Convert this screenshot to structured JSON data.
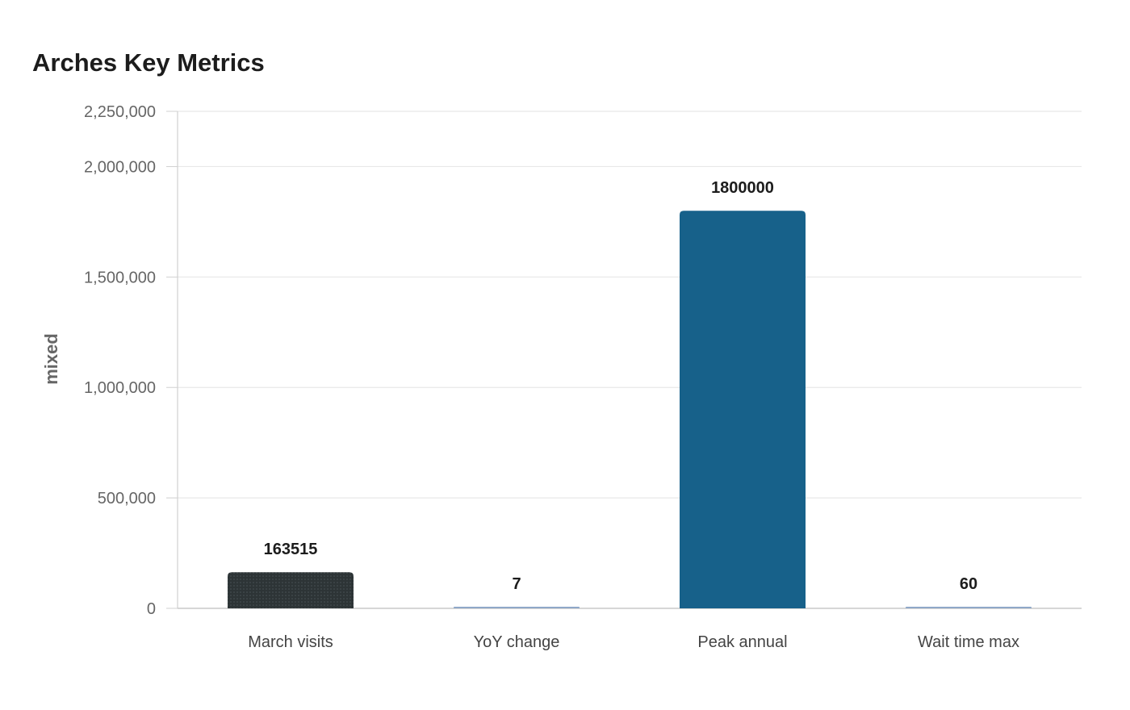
{
  "chart_data": {
    "type": "bar",
    "title": "Arches Key Metrics",
    "xlabel": "",
    "ylabel": "mixed",
    "categories": [
      "March visits",
      "YoY change",
      "Peak annual",
      "Wait time max"
    ],
    "values": [
      163515,
      7,
      1800000,
      60
    ],
    "data_labels": [
      "163515",
      "7",
      "1800000",
      "60"
    ],
    "ylim": [
      0,
      2250000
    ],
    "yticks": [
      0,
      500000,
      1000000,
      1500000,
      2000000,
      2250000
    ],
    "ytick_labels": [
      "0",
      "500,000",
      "1,000,000",
      "1,500,000",
      "2,000,000",
      "2,250,000"
    ],
    "bar_colors": [
      "#2d3436",
      "#8fa8c8",
      "#17618a",
      "#8fa8c8"
    ],
    "bar_patterns": [
      "dotted",
      "none",
      "none",
      "none"
    ],
    "grid": true,
    "legend": "none"
  }
}
